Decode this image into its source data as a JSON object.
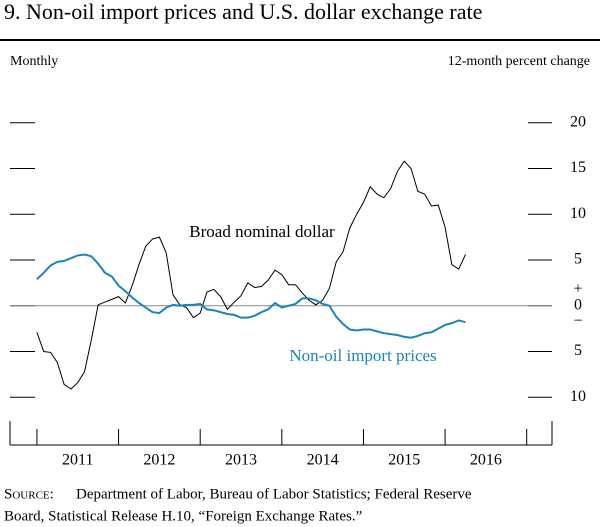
{
  "chart_data": {
    "type": "line",
    "title": "9.   Non-oil import prices and U.S. dollar exchange rate",
    "frequency_label": "Monthly",
    "y_axis_label": "12-month percent change",
    "x": [
      2011,
      2011.083,
      2011.167,
      2011.25,
      2011.333,
      2011.417,
      2011.5,
      2011.583,
      2011.667,
      2011.75,
      2011.833,
      2011.917,
      2012,
      2012.083,
      2012.167,
      2012.25,
      2012.333,
      2012.417,
      2012.5,
      2012.583,
      2012.667,
      2012.75,
      2012.833,
      2012.917,
      2013,
      2013.083,
      2013.167,
      2013.25,
      2013.333,
      2013.417,
      2013.5,
      2013.583,
      2013.667,
      2013.75,
      2013.833,
      2013.917,
      2014,
      2014.083,
      2014.167,
      2014.25,
      2014.333,
      2014.417,
      2014.5,
      2014.583,
      2014.667,
      2014.75,
      2014.833,
      2014.917,
      2015,
      2015.083,
      2015.167,
      2015.25,
      2015.333,
      2015.417,
      2015.5,
      2015.583,
      2015.667,
      2015.75,
      2015.833,
      2015.917,
      2016,
      2016.083,
      2016.167,
      2016.25
    ],
    "series": [
      {
        "name": "Broad nominal dollar",
        "color": "#000000",
        "values": [
          -2.9,
          -5,
          -5.1,
          -6.2,
          -8.6,
          -9.1,
          -8.4,
          -7.2,
          -3.7,
          0.1,
          0.4,
          0.7,
          1.0,
          0.3,
          2.2,
          4.5,
          6.5,
          7.3,
          7.5,
          5.8,
          1.2,
          0.1,
          -0.2,
          -1.3,
          -0.8,
          1.5,
          1.8,
          1.0,
          -0.4,
          0.4,
          1.1,
          2.5,
          2.0,
          2.1,
          2.8,
          3.9,
          3.4,
          2.3,
          2.3,
          1.4,
          0.6,
          0.1,
          0.6,
          1.9,
          4.8,
          5.9,
          8.5,
          10.0,
          11.3,
          13.0,
          12.2,
          11.8,
          12.8,
          14.7,
          15.8,
          15.0,
          12.5,
          12.2,
          10.9,
          11.0,
          8.6,
          4.5,
          4.0,
          5.6
        ]
      },
      {
        "name": "Non-oil import prices",
        "color": "#1a86b8",
        "values": [
          2.9,
          3.6,
          4.4,
          4.8,
          4.9,
          5.2,
          5.5,
          5.6,
          5.4,
          4.6,
          3.6,
          3.2,
          2.2,
          1.6,
          0.9,
          0.3,
          -0.2,
          -0.7,
          -0.8,
          -0.2,
          0.1,
          0.0,
          0.1,
          0.1,
          0.2,
          -0.4,
          -0.5,
          -0.7,
          -0.9,
          -1.0,
          -1.3,
          -1.3,
          -1.1,
          -0.7,
          -0.4,
          0.3,
          -0.2,
          0.0,
          0.2,
          0.8,
          0.8,
          0.6,
          0.2,
          0.0,
          -1.2,
          -2.0,
          -2.6,
          -2.7,
          -2.6,
          -2.6,
          -2.8,
          -3.0,
          -3.1,
          -3.2,
          -3.4,
          -3.5,
          -3.3,
          -3.0,
          -2.9,
          -2.5,
          -2.1,
          -1.9,
          -1.6,
          -1.8
        ]
      }
    ],
    "xlim": [
      2010.67,
      2017.31
    ],
    "xticks": [
      2011,
      2012,
      2013,
      2014,
      2015,
      2016,
      2017
    ],
    "year_labels": [
      "2011",
      "2012",
      "2013",
      "2014",
      "2015",
      "2016"
    ],
    "ylim": [
      -15,
      25
    ],
    "yticks": [
      {
        "value": -10,
        "label": "10"
      },
      {
        "value": -5,
        "label": "5"
      },
      0,
      5,
      10,
      15,
      20
    ],
    "zero_signs": {
      "above": "+",
      "below": "−"
    },
    "zero_line": true,
    "source": {
      "label": "Source:",
      "lines": [
        "Department of Labor, Bureau of Labor Statistics; Federal Reserve",
        "Board, Statistical Release H.10, “Foreign Exchange Rates.”"
      ]
    }
  }
}
